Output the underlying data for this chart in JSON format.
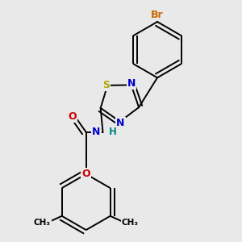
{
  "background_color": "#e9e9e9",
  "bond_color": "#000000",
  "atom_colors": {
    "Br": "#cc6600",
    "N": "#0000cc",
    "S": "#aaaa00",
    "O": "#cc0000",
    "H": "#008888",
    "C": "#000000"
  },
  "figsize": [
    3.0,
    3.0
  ],
  "dpi": 100
}
